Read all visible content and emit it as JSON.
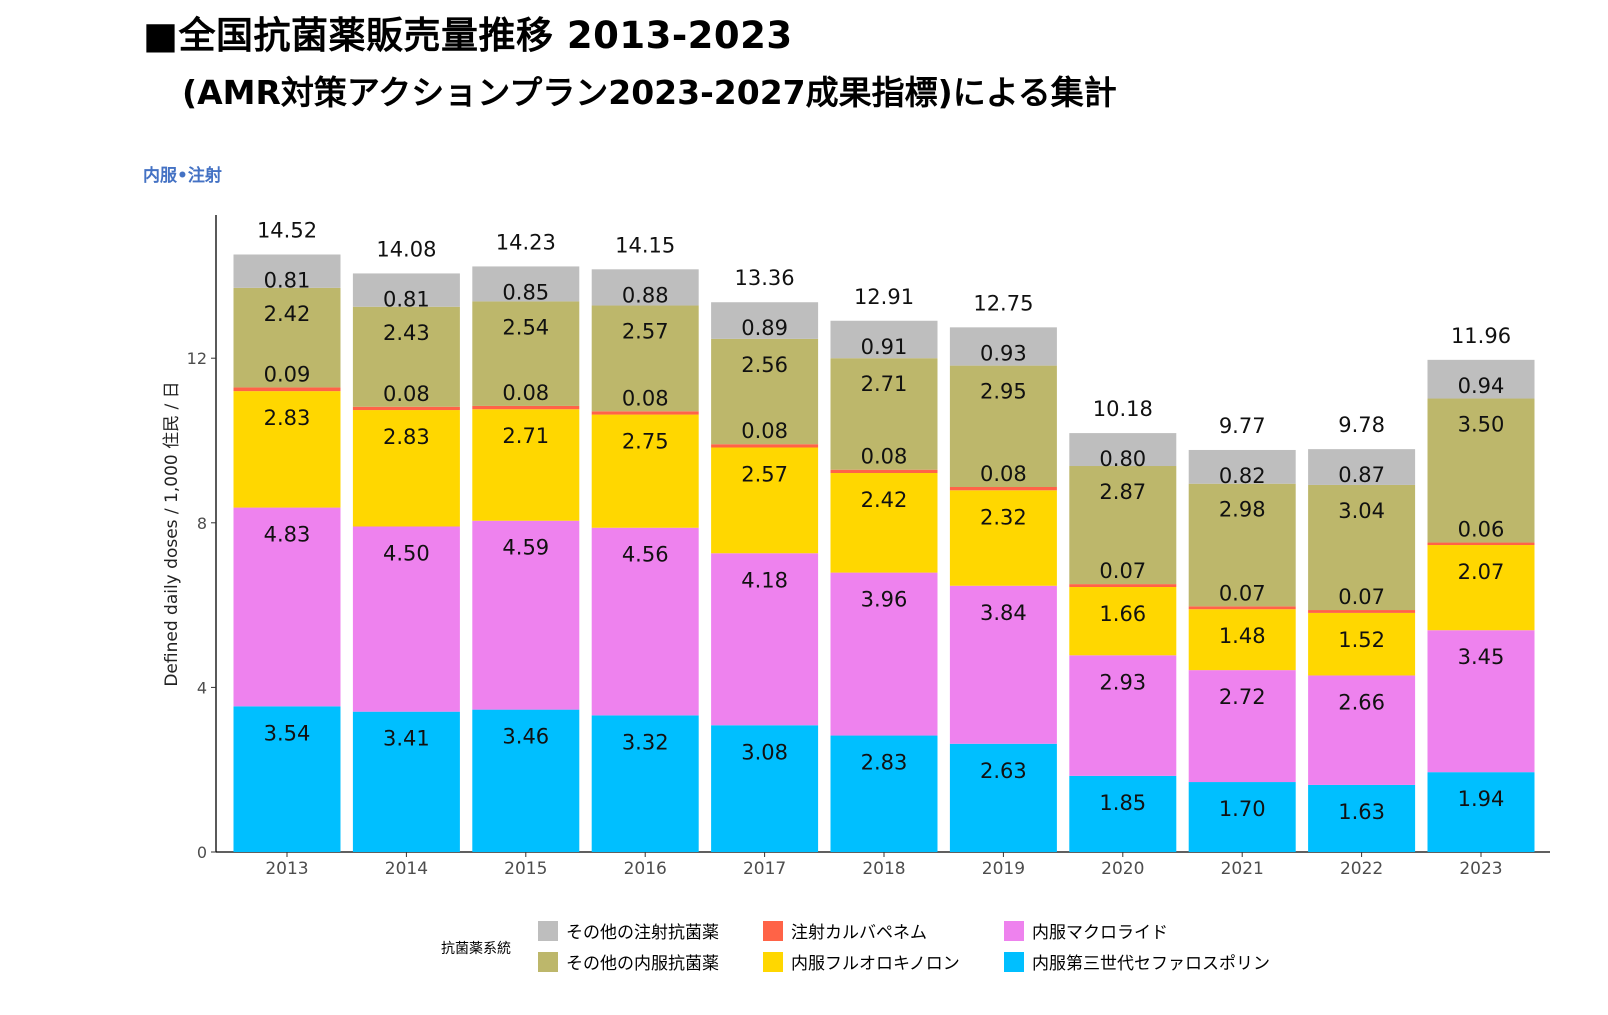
{
  "header": {
    "title_line1": "■全国抗菌薬販売量推移 2013-2023",
    "title_line2": "(AMR対策アクションプラン2023-2027成果指標)による集計",
    "subtitle": "内服•注射"
  },
  "chart_data": {
    "type": "bar",
    "stacked": true,
    "ylabel": "Defined daily doses / 1,000 住民 / 日",
    "xlabel": "",
    "ylim": [
      0,
      15.2
    ],
    "yticks": [
      0,
      4,
      8,
      12
    ],
    "categories": [
      "2013",
      "2014",
      "2015",
      "2016",
      "2017",
      "2018",
      "2019",
      "2020",
      "2021",
      "2022",
      "2023"
    ],
    "totals": [
      "14.52",
      "14.08",
      "14.23",
      "14.15",
      "13.36",
      "12.91",
      "12.75",
      "10.18",
      "9.77",
      "9.78",
      "11.96"
    ],
    "series": [
      {
        "name": "内服第三世代セファロスポリン",
        "color": "#00bfff",
        "values": [
          3.54,
          3.41,
          3.46,
          3.32,
          3.08,
          2.83,
          2.63,
          1.85,
          1.7,
          1.63,
          1.94
        ]
      },
      {
        "name": "内服マクロライド",
        "color": "#ee82ee",
        "values": [
          4.83,
          4.5,
          4.59,
          4.56,
          4.18,
          3.96,
          3.84,
          2.93,
          2.72,
          2.66,
          3.45
        ]
      },
      {
        "name": "内服フルオロキノロン",
        "color": "#ffd700",
        "values": [
          2.83,
          2.83,
          2.71,
          2.75,
          2.57,
          2.42,
          2.32,
          1.66,
          1.48,
          1.52,
          2.07
        ]
      },
      {
        "name": "注射カルバペネム",
        "color": "#ff6347",
        "values": [
          0.09,
          0.08,
          0.08,
          0.08,
          0.08,
          0.08,
          0.08,
          0.07,
          0.07,
          0.07,
          0.06
        ]
      },
      {
        "name": "その他の内服抗菌薬",
        "color": "#bdb76b",
        "values": [
          2.42,
          2.43,
          2.54,
          2.57,
          2.56,
          2.71,
          2.95,
          2.87,
          2.98,
          3.04,
          3.5
        ]
      },
      {
        "name": "その他の注射抗菌薬",
        "color": "#bebebe",
        "values": [
          0.81,
          0.81,
          0.85,
          0.88,
          0.89,
          0.91,
          0.93,
          0.8,
          0.82,
          0.87,
          0.94
        ]
      }
    ],
    "legend": {
      "title": "抗菌薬系統",
      "position": "bottom",
      "order": [
        "その他の注射抗菌薬",
        "その他の内服抗菌薬",
        "注射カルバペネム",
        "内服フルオロキノロン",
        "内服マクロライド",
        "内服第三世代セファロスポリン"
      ]
    }
  }
}
